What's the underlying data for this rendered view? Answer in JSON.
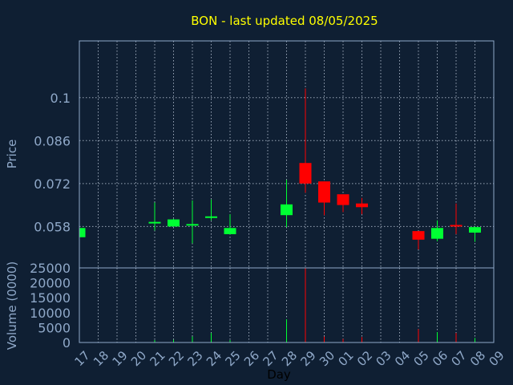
{
  "chart_data": {
    "type": "candlestick",
    "title": "BON - last updated 08/05/2025",
    "xlabel": "Day",
    "ylabel": "Price",
    "volume_label": "Volume (0000)",
    "x_ticks": [
      "17",
      "18",
      "19",
      "20",
      "21",
      "22",
      "23",
      "24",
      "25",
      "26",
      "27",
      "28",
      "29",
      "30",
      "01",
      "02",
      "03",
      "04",
      "05",
      "06",
      "07",
      "08",
      "09"
    ],
    "price_ticks": [
      0.058,
      0.072,
      0.086,
      0.1
    ],
    "price_tick_labels": [
      "0.058",
      "0.072",
      "0.086",
      "0.1"
    ],
    "volume_ticks": [
      0,
      5000,
      10000,
      15000,
      20000,
      25000
    ],
    "volume_tick_labels": [
      "0",
      "5000",
      "10000",
      "15000",
      "20000",
      "25000"
    ],
    "price_ylim": [
      0.0445,
      0.1185
    ],
    "volume_ylim": [
      0,
      25000
    ],
    "grid": true,
    "colors": {
      "background": "#0f1f33",
      "up": "#00ff33",
      "down": "#ff0000",
      "grid": "#c8d4e4",
      "axis": "#8fa8c8",
      "title": "#ffff00"
    },
    "candles": [
      {
        "day": "17",
        "open": 0.0545,
        "high": 0.0575,
        "low": 0.0545,
        "close": 0.0575,
        "volume": 600
      },
      {
        "day": "21",
        "open": 0.059,
        "high": 0.0658,
        "low": 0.0567,
        "close": 0.0595,
        "volume": 800
      },
      {
        "day": "22",
        "open": 0.058,
        "high": 0.0605,
        "low": 0.058,
        "close": 0.0603,
        "volume": 900
      },
      {
        "day": "23",
        "open": 0.0583,
        "high": 0.0665,
        "low": 0.0525,
        "close": 0.0588,
        "volume": 2000
      },
      {
        "day": "24",
        "open": 0.0608,
        "high": 0.0668,
        "low": 0.06,
        "close": 0.0613,
        "volume": 3200
      },
      {
        "day": "25",
        "open": 0.0555,
        "high": 0.062,
        "low": 0.0555,
        "close": 0.0575,
        "volume": 800
      },
      {
        "day": "28",
        "open": 0.0617,
        "high": 0.0732,
        "low": 0.0578,
        "close": 0.0652,
        "volume": 7800
      },
      {
        "day": "29",
        "open": 0.0787,
        "high": 0.103,
        "low": 0.069,
        "close": 0.072,
        "volume": 25000
      },
      {
        "day": "30",
        "open": 0.0727,
        "high": 0.0727,
        "low": 0.0617,
        "close": 0.0658,
        "volume": 2000
      },
      {
        "day": "01",
        "open": 0.0685,
        "high": 0.0685,
        "low": 0.0627,
        "close": 0.065,
        "volume": 1200
      },
      {
        "day": "02",
        "open": 0.0655,
        "high": 0.0673,
        "low": 0.062,
        "close": 0.0643,
        "volume": 1800
      },
      {
        "day": "05",
        "open": 0.0565,
        "high": 0.0565,
        "low": 0.0505,
        "close": 0.0537,
        "volume": 4500
      },
      {
        "day": "06",
        "open": 0.054,
        "high": 0.06,
        "low": 0.0532,
        "close": 0.0575,
        "volume": 3500
      },
      {
        "day": "07",
        "open": 0.0585,
        "high": 0.0655,
        "low": 0.0555,
        "close": 0.058,
        "volume": 3200
      },
      {
        "day": "08",
        "open": 0.056,
        "high": 0.058,
        "low": 0.053,
        "close": 0.0578,
        "volume": 1500
      }
    ]
  }
}
